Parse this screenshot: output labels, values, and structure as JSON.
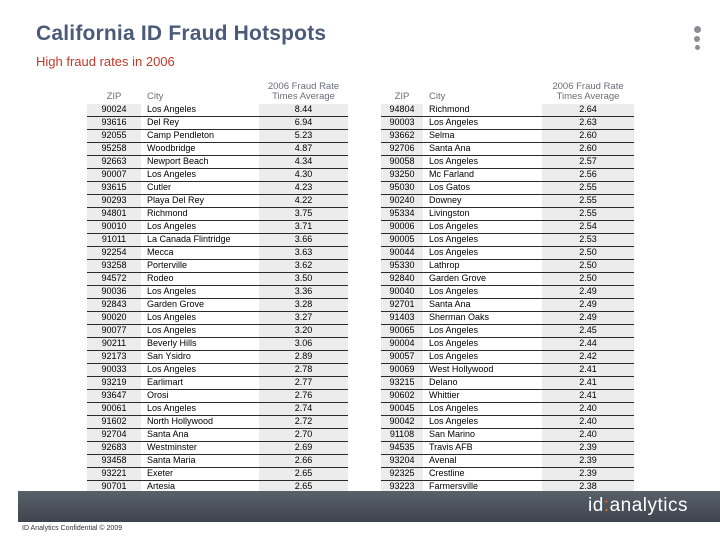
{
  "title": "California ID Fraud Hotspots",
  "subtitle": "High fraud rates in 2006",
  "colors": {
    "title": "#4a5a78",
    "subtitle": "#c0392b",
    "footer_bar": "#4b525b",
    "brand_accent": "#e46b1c"
  },
  "left_table": {
    "headers": {
      "zip": "ZIP",
      "city": "City",
      "rate": "2006 Fraud Rate Times Average"
    },
    "rows": [
      {
        "zip": "90024",
        "city": "Los Angeles",
        "rate": "8.44"
      },
      {
        "zip": "93616",
        "city": "Del Rey",
        "rate": "6.94"
      },
      {
        "zip": "92055",
        "city": "Camp Pendleton",
        "rate": "5.23"
      },
      {
        "zip": "95258",
        "city": "Woodbridge",
        "rate": "4.87"
      },
      {
        "zip": "92663",
        "city": "Newport Beach",
        "rate": "4.34"
      },
      {
        "zip": "90007",
        "city": "Los Angeles",
        "rate": "4.30"
      },
      {
        "zip": "93615",
        "city": "Cutler",
        "rate": "4.23"
      },
      {
        "zip": "90293",
        "city": "Playa Del Rey",
        "rate": "4.22"
      },
      {
        "zip": "94801",
        "city": "Richmond",
        "rate": "3.75"
      },
      {
        "zip": "90010",
        "city": "Los Angeles",
        "rate": "3.71"
      },
      {
        "zip": "91011",
        "city": "La Canada Flintridge",
        "rate": "3.66"
      },
      {
        "zip": "92254",
        "city": "Mecca",
        "rate": "3.63"
      },
      {
        "zip": "93258",
        "city": "Porterville",
        "rate": "3.62"
      },
      {
        "zip": "94572",
        "city": "Rodeo",
        "rate": "3.50"
      },
      {
        "zip": "90036",
        "city": "Los Angeles",
        "rate": "3.36"
      },
      {
        "zip": "92843",
        "city": "Garden Grove",
        "rate": "3.28"
      },
      {
        "zip": "90020",
        "city": "Los Angeles",
        "rate": "3.27"
      },
      {
        "zip": "90077",
        "city": "Los Angeles",
        "rate": "3.20"
      },
      {
        "zip": "90211",
        "city": "Beverly Hills",
        "rate": "3.06"
      },
      {
        "zip": "92173",
        "city": "San Ysidro",
        "rate": "2.89"
      },
      {
        "zip": "90033",
        "city": "Los Angeles",
        "rate": "2.78"
      },
      {
        "zip": "93219",
        "city": "Earlimart",
        "rate": "2.77"
      },
      {
        "zip": "93647",
        "city": "Orosi",
        "rate": "2.76"
      },
      {
        "zip": "90061",
        "city": "Los Angeles",
        "rate": "2.74"
      },
      {
        "zip": "91602",
        "city": "North Hollywood",
        "rate": "2.72"
      },
      {
        "zip": "92704",
        "city": "Santa Ana",
        "rate": "2.70"
      },
      {
        "zip": "92683",
        "city": "Westminster",
        "rate": "2.69"
      },
      {
        "zip": "93458",
        "city": "Santa Maria",
        "rate": "2.66"
      },
      {
        "zip": "93221",
        "city": "Exeter",
        "rate": "2.65"
      },
      {
        "zip": "90701",
        "city": "Artesia",
        "rate": "2.65"
      }
    ]
  },
  "right_table": {
    "headers": {
      "zip": "ZIP",
      "city": "City",
      "rate": "2006 Fraud Rate Times Average"
    },
    "rows": [
      {
        "zip": "94804",
        "city": "Richmond",
        "rate": "2.64"
      },
      {
        "zip": "90003",
        "city": "Los Angeles",
        "rate": "2.63"
      },
      {
        "zip": "93662",
        "city": "Selma",
        "rate": "2.60"
      },
      {
        "zip": "92706",
        "city": "Santa Ana",
        "rate": "2.60"
      },
      {
        "zip": "90058",
        "city": "Los Angeles",
        "rate": "2.57"
      },
      {
        "zip": "93250",
        "city": "Mc Farland",
        "rate": "2.56"
      },
      {
        "zip": "95030",
        "city": "Los Gatos",
        "rate": "2.55"
      },
      {
        "zip": "90240",
        "city": "Downey",
        "rate": "2.55"
      },
      {
        "zip": "95334",
        "city": "Livingston",
        "rate": "2.55"
      },
      {
        "zip": "90006",
        "city": "Los Angeles",
        "rate": "2.54"
      },
      {
        "zip": "90005",
        "city": "Los Angeles",
        "rate": "2.53"
      },
      {
        "zip": "90044",
        "city": "Los Angeles",
        "rate": "2.50"
      },
      {
        "zip": "95330",
        "city": "Lathrop",
        "rate": "2.50"
      },
      {
        "zip": "92840",
        "city": "Garden Grove",
        "rate": "2.50"
      },
      {
        "zip": "90040",
        "city": "Los Angeles",
        "rate": "2.49"
      },
      {
        "zip": "92701",
        "city": "Santa Ana",
        "rate": "2.49"
      },
      {
        "zip": "91403",
        "city": "Sherman Oaks",
        "rate": "2.49"
      },
      {
        "zip": "90065",
        "city": "Los Angeles",
        "rate": "2.45"
      },
      {
        "zip": "90004",
        "city": "Los Angeles",
        "rate": "2.44"
      },
      {
        "zip": "90057",
        "city": "Los Angeles",
        "rate": "2.42"
      },
      {
        "zip": "90069",
        "city": "West Hollywood",
        "rate": "2.41"
      },
      {
        "zip": "93215",
        "city": "Delano",
        "rate": "2.41"
      },
      {
        "zip": "90602",
        "city": "Whittier",
        "rate": "2.41"
      },
      {
        "zip": "90045",
        "city": "Los Angeles",
        "rate": "2.40"
      },
      {
        "zip": "90042",
        "city": "Los Angeles",
        "rate": "2.40"
      },
      {
        "zip": "91108",
        "city": "San Marino",
        "rate": "2.40"
      },
      {
        "zip": "94535",
        "city": "Travis AFB",
        "rate": "2.39"
      },
      {
        "zip": "93204",
        "city": "Avenal",
        "rate": "2.39"
      },
      {
        "zip": "92325",
        "city": "Crestline",
        "rate": "2.39"
      },
      {
        "zip": "93223",
        "city": "Farmersville",
        "rate": "2.38"
      }
    ]
  },
  "footer": {
    "brand_prefix": "id",
    "brand_colon": ":",
    "brand_suffix": "analytics",
    "confidential": "ID Analytics Confidential © 2009"
  }
}
